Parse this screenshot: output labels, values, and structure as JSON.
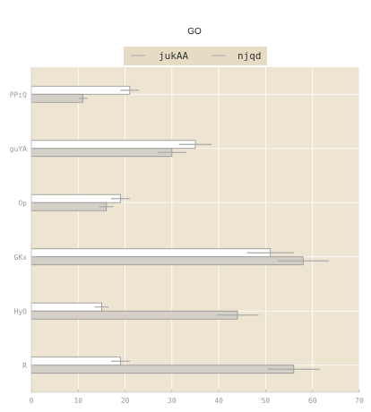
{
  "chart_data": {
    "type": "bar",
    "orientation": "horizontal",
    "title": "GO",
    "xlabel": "",
    "ylabel": "",
    "xlim": [
      0,
      70
    ],
    "xticks": [
      0,
      10,
      20,
      30,
      40,
      50,
      60,
      70
    ],
    "categories": [
      "PPiQ",
      "guYA",
      "Op",
      "GKx",
      "HyO",
      "R"
    ],
    "series": [
      {
        "name": "jukAA",
        "color": "#ffffff",
        "values": [
          21,
          35,
          19,
          51,
          15,
          19
        ],
        "errors": [
          2,
          3.5,
          2,
          5,
          1.5,
          2
        ]
      },
      {
        "name": "njqd",
        "color": "#d4d0c8",
        "values": [
          11,
          30,
          16,
          58,
          44,
          56
        ],
        "errors": [
          1,
          3,
          1.5,
          5.5,
          4.5,
          5.5
        ]
      }
    ],
    "grid": true,
    "legend": "top-center",
    "background": "#ede5d2",
    "error_bar_color": "#aaaaaa"
  }
}
